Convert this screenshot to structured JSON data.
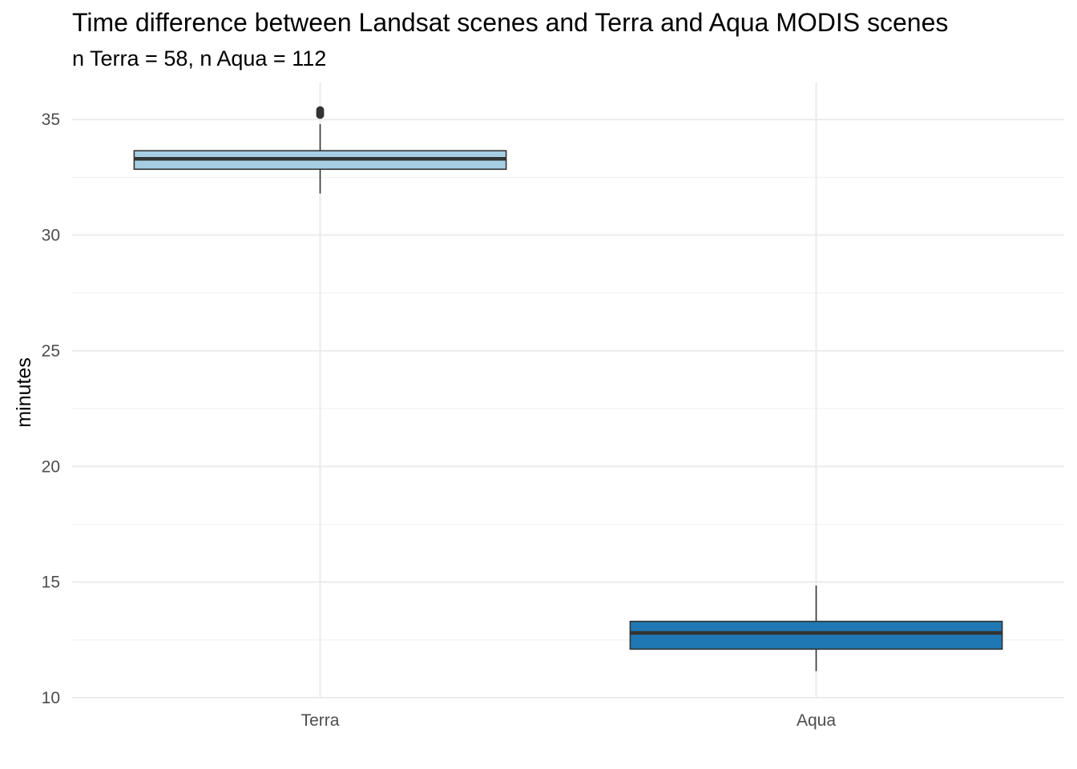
{
  "chart_data": {
    "type": "box",
    "title": "Time difference between Landsat scenes and Terra and Aqua MODIS scenes",
    "subtitle": "n Terra = 58, n Aqua = 112",
    "xlabel": "",
    "ylabel": "minutes",
    "categories": [
      "Terra",
      "Aqua"
    ],
    "ylim": [
      10,
      36.6
    ],
    "yticks": [
      10,
      15,
      20,
      25,
      30,
      35
    ],
    "grid": true,
    "boxes": [
      {
        "name": "Terra",
        "lower_whisker": 31.8,
        "q1": 32.85,
        "median": 33.3,
        "q3": 33.65,
        "upper_whisker": 34.8,
        "outliers": [
          35.2,
          35.3,
          35.4
        ],
        "fill": "#a6cee3"
      },
      {
        "name": "Aqua",
        "lower_whisker": 11.15,
        "q1": 12.1,
        "median": 12.8,
        "q3": 13.3,
        "upper_whisker": 14.85,
        "outliers": [],
        "fill": "#1f78b4"
      }
    ]
  }
}
